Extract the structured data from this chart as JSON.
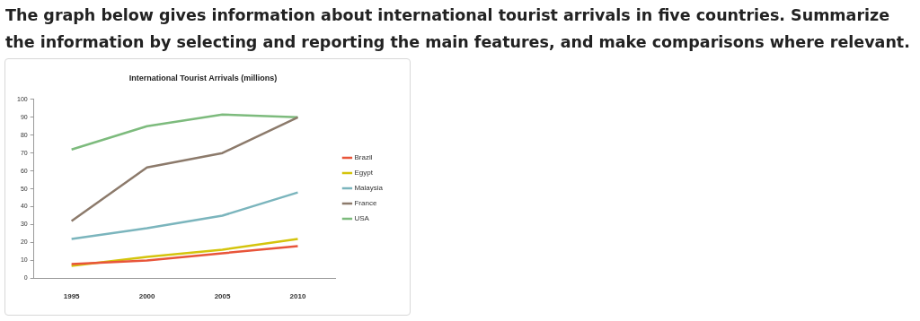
{
  "chart_data": {
    "type": "line",
    "title": "International Tourist Arrivals (millions)",
    "annotations": [
      "The graph below gives information about international tourist arrivals in five countries. Summarize the information by selecting and reporting the main features, and make comparisons where relevant."
    ],
    "categories": [
      "1995",
      "2000",
      "2005",
      "2010"
    ],
    "series": [
      {
        "name": "Brazil",
        "color": "#e8553a",
        "values": [
          8,
          10,
          14,
          18
        ]
      },
      {
        "name": "Egypt",
        "color": "#d4c40c",
        "values": [
          7,
          12,
          16,
          22
        ]
      },
      {
        "name": "Malaysia",
        "color": "#7bb5bd",
        "values": [
          22,
          28,
          35,
          48
        ]
      },
      {
        "name": "France",
        "color": "#8c7a6b",
        "values": [
          32,
          62,
          70,
          90
        ]
      },
      {
        "name": "USA",
        "color": "#7dbb7d",
        "values": [
          72,
          85,
          91.5,
          90
        ]
      }
    ],
    "ylim": [
      0,
      100
    ],
    "yticks": [
      0,
      10,
      20,
      30,
      40,
      50,
      60,
      70,
      80,
      90,
      100
    ],
    "grid": false,
    "legend": "right",
    "marker": "none",
    "line_style": "solid"
  }
}
